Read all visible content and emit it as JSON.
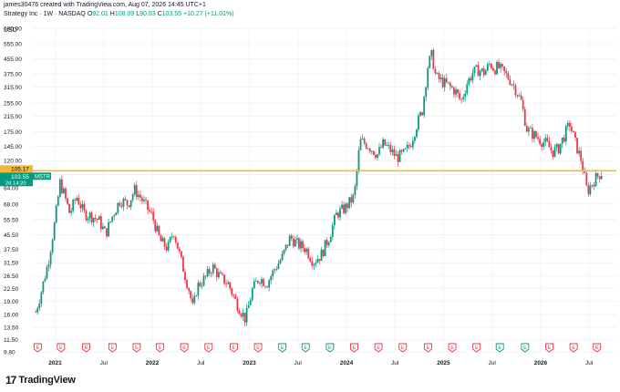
{
  "header": {
    "created_by": "james30476 created with TradingView.com, Aug 07, 2026 14:45 UTC+1",
    "instrument": "Strategy Inc · 1W · NASDAQ",
    "o_label": "O",
    "o_value": "92.01",
    "h_label": "H",
    "h_value": "108.09",
    "l_label": "L",
    "l_value": "90.93",
    "c_label": "C",
    "c_value": "103.55",
    "change": "+10.27 (+11.01%)"
  },
  "currency": "USD",
  "brand": {
    "logo_text": "17",
    "name": "TradingView"
  },
  "colors": {
    "up": "#089981",
    "down": "#f23645",
    "hline": "#f0b93a",
    "grid": "#f0f3fa"
  },
  "price_tags": {
    "hline_value": "105.17",
    "last_price": "103.55",
    "ticker": "MSTR",
    "countdown": "2d 14:20"
  },
  "chart_data": {
    "type": "candlestick",
    "title": "Strategy Inc · 1W · NASDAQ",
    "scale": "log",
    "y_ticks": [
      "680.00",
      "555.00",
      "455.00",
      "375.00",
      "315.00",
      "255.00",
      "215.00",
      "175.00",
      "145.00",
      "120.00",
      "100.00",
      "84.00",
      "68.00",
      "55.50",
      "45.50",
      "37.50",
      "31.50",
      "26.50",
      "22.50",
      "19.00",
      "16.00",
      "13.50",
      "11.50",
      "9.80"
    ],
    "x_ticks": [
      {
        "label": "2021",
        "t": 2021.0,
        "bold": true
      },
      {
        "label": "Jul",
        "t": 2021.5,
        "bold": false
      },
      {
        "label": "2022",
        "t": 2022.0,
        "bold": true
      },
      {
        "label": "Jul",
        "t": 2022.5,
        "bold": false
      },
      {
        "label": "2023",
        "t": 2023.0,
        "bold": true
      },
      {
        "label": "Jul",
        "t": 2023.5,
        "bold": false
      },
      {
        "label": "2024",
        "t": 2024.0,
        "bold": true
      },
      {
        "label": "Jul",
        "t": 2024.5,
        "bold": false
      },
      {
        "label": "2025",
        "t": 2025.0,
        "bold": true
      },
      {
        "label": "Jul",
        "t": 2025.5,
        "bold": false
      },
      {
        "label": "2026",
        "t": 2026.0,
        "bold": true
      },
      {
        "label": "Jul",
        "t": 2026.5,
        "bold": false
      }
    ],
    "horizontal_line": 105.17,
    "x_range": [
      2020.77,
      2026.78
    ],
    "y_range": [
      9.8,
      680
    ],
    "path_points": [
      [
        2020.8,
        16.5
      ],
      [
        2020.86,
        22
      ],
      [
        2020.93,
        32
      ],
      [
        2021.0,
        55
      ],
      [
        2021.05,
        90
      ],
      [
        2021.09,
        78
      ],
      [
        2021.15,
        60
      ],
      [
        2021.22,
        75
      ],
      [
        2021.3,
        60
      ],
      [
        2021.38,
        58
      ],
      [
        2021.45,
        55
      ],
      [
        2021.52,
        46
      ],
      [
        2021.6,
        60
      ],
      [
        2021.67,
        72
      ],
      [
        2021.75,
        68
      ],
      [
        2021.82,
        82
      ],
      [
        2021.88,
        74
      ],
      [
        2022.0,
        58
      ],
      [
        2022.08,
        42
      ],
      [
        2022.16,
        38
      ],
      [
        2022.22,
        48
      ],
      [
        2022.3,
        32
      ],
      [
        2022.38,
        22
      ],
      [
        2022.42,
        17
      ],
      [
        2022.46,
        23
      ],
      [
        2022.55,
        26
      ],
      [
        2022.62,
        30
      ],
      [
        2022.7,
        26
      ],
      [
        2022.78,
        24
      ],
      [
        2022.86,
        19
      ],
      [
        2022.96,
        15
      ],
      [
        2023.03,
        22
      ],
      [
        2023.1,
        26
      ],
      [
        2023.18,
        24
      ],
      [
        2023.26,
        29
      ],
      [
        2023.34,
        34
      ],
      [
        2023.42,
        44
      ],
      [
        2023.5,
        40
      ],
      [
        2023.58,
        38
      ],
      [
        2023.66,
        32
      ],
      [
        2023.74,
        35
      ],
      [
        2023.82,
        44
      ],
      [
        2023.9,
        60
      ],
      [
        2023.98,
        64
      ],
      [
        2024.08,
        75
      ],
      [
        2024.14,
        155
      ],
      [
        2024.2,
        150
      ],
      [
        2024.26,
        140
      ],
      [
        2024.32,
        130
      ],
      [
        2024.38,
        150
      ],
      [
        2024.44,
        140
      ],
      [
        2024.52,
        125
      ],
      [
        2024.6,
        132
      ],
      [
        2024.66,
        150
      ],
      [
        2024.72,
        190
      ],
      [
        2024.78,
        230
      ],
      [
        2024.84,
        420
      ],
      [
        2024.88,
        480
      ],
      [
        2024.92,
        360
      ],
      [
        2024.98,
        340
      ],
      [
        2025.05,
        320
      ],
      [
        2025.12,
        300
      ],
      [
        2025.18,
        260
      ],
      [
        2025.24,
        330
      ],
      [
        2025.3,
        380
      ],
      [
        2025.36,
        395
      ],
      [
        2025.42,
        380
      ],
      [
        2025.48,
        430
      ],
      [
        2025.52,
        400
      ],
      [
        2025.56,
        410
      ],
      [
        2025.62,
        380
      ],
      [
        2025.68,
        350
      ],
      [
        2025.74,
        310
      ],
      [
        2025.8,
        260
      ],
      [
        2025.86,
        180
      ],
      [
        2025.92,
        170
      ],
      [
        2025.98,
        160
      ],
      [
        2026.06,
        150
      ],
      [
        2026.12,
        135
      ],
      [
        2026.18,
        140
      ],
      [
        2026.24,
        165
      ],
      [
        2026.3,
        195
      ],
      [
        2026.36,
        150
      ],
      [
        2026.42,
        120
      ],
      [
        2026.48,
        80
      ],
      [
        2026.55,
        93
      ],
      [
        2026.6,
        100
      ],
      [
        2026.64,
        103.55
      ]
    ],
    "earnings_markers": [
      {
        "t": 2020.82,
        "kind": "miss"
      },
      {
        "t": 2021.06,
        "kind": "miss"
      },
      {
        "t": 2021.32,
        "kind": "miss"
      },
      {
        "t": 2021.59,
        "kind": "miss"
      },
      {
        "t": 2021.84,
        "kind": "miss"
      },
      {
        "t": 2022.08,
        "kind": "miss"
      },
      {
        "t": 2022.33,
        "kind": "miss"
      },
      {
        "t": 2022.58,
        "kind": "miss"
      },
      {
        "t": 2022.84,
        "kind": "miss"
      },
      {
        "t": 2023.09,
        "kind": "miss"
      },
      {
        "t": 2023.34,
        "kind": "beat"
      },
      {
        "t": 2023.58,
        "kind": "beat"
      },
      {
        "t": 2023.83,
        "kind": "beat"
      },
      {
        "t": 2024.08,
        "kind": "miss"
      },
      {
        "t": 2024.33,
        "kind": "miss"
      },
      {
        "t": 2024.58,
        "kind": "miss"
      },
      {
        "t": 2024.84,
        "kind": "miss"
      },
      {
        "t": 2025.09,
        "kind": "miss"
      },
      {
        "t": 2025.34,
        "kind": "miss"
      },
      {
        "t": 2025.58,
        "kind": "beat"
      },
      {
        "t": 2025.84,
        "kind": "beat"
      },
      {
        "t": 2026.09,
        "kind": "miss"
      },
      {
        "t": 2026.34,
        "kind": "miss"
      },
      {
        "t": 2026.58,
        "kind": "miss"
      }
    ],
    "earnings_marker_label": "E"
  }
}
